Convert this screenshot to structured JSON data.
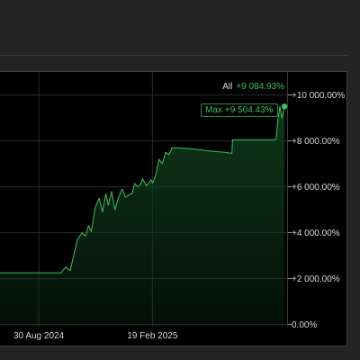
{
  "colors": {
    "line": "#3cc15a",
    "fill_top": "#0f3a1c",
    "axis_text": "#d8d8d8",
    "grid": "#2a2a2a",
    "accent": "#3cc15a"
  },
  "summary": {
    "label": "All",
    "value": "+9 084.93%"
  },
  "max_badge": {
    "label": "Max",
    "value": "+9 504.43%"
  },
  "chart_data": {
    "type": "area",
    "grid": true,
    "legend_position": "none",
    "y_ticks": [
      0,
      2000,
      4000,
      6000,
      8000,
      10000
    ],
    "y_tick_labels": [
      "0.00%",
      "+2 000.00%",
      "+4 000.00%",
      "+6 000.00%",
      "+8 000.00%",
      "+10 000.00%"
    ],
    "ylim": [
      -100,
      11000
    ],
    "x_ticks": [
      "2024-08-30",
      "2025-02-19"
    ],
    "x_tick_labels": [
      "30 Aug 2024",
      "19 Feb 2025"
    ],
    "xlim": [
      "2024-07-02",
      "2025-09-12"
    ],
    "series": [
      {
        "values": [
          [
            "2024-07-02",
            2250
          ],
          [
            "2024-08-01",
            2250
          ],
          [
            "2024-09-01",
            2250
          ],
          [
            "2024-10-03",
            2250
          ],
          [
            "2024-10-10",
            2500
          ],
          [
            "2024-10-17",
            2350
          ],
          [
            "2024-10-22",
            3000
          ],
          [
            "2024-10-28",
            3700
          ],
          [
            "2024-11-04",
            4000
          ],
          [
            "2024-11-09",
            3850
          ],
          [
            "2024-11-14",
            4300
          ],
          [
            "2024-11-18",
            4050
          ],
          [
            "2024-11-24",
            5100
          ],
          [
            "2024-11-30",
            5500
          ],
          [
            "2024-12-05",
            4900
          ],
          [
            "2024-12-10",
            5700
          ],
          [
            "2024-12-14",
            5200
          ],
          [
            "2024-12-19",
            5800
          ],
          [
            "2024-12-24",
            5000
          ],
          [
            "2024-12-29",
            5500
          ],
          [
            "2025-01-04",
            5900
          ],
          [
            "2025-01-09",
            5550
          ],
          [
            "2025-01-14",
            5650
          ],
          [
            "2025-01-19",
            5700
          ],
          [
            "2025-01-23",
            6150
          ],
          [
            "2025-01-27",
            6000
          ],
          [
            "2025-02-01",
            6100
          ],
          [
            "2025-02-04",
            6350
          ],
          [
            "2025-02-10",
            6050
          ],
          [
            "2025-02-17",
            6300
          ],
          [
            "2025-02-19",
            6150
          ],
          [
            "2025-02-24",
            6500
          ],
          [
            "2025-03-01",
            7200
          ],
          [
            "2025-03-06",
            7000
          ],
          [
            "2025-03-11",
            7500
          ],
          [
            "2025-03-16",
            7400
          ],
          [
            "2025-03-21",
            7700
          ],
          [
            "2025-03-26",
            7700
          ],
          [
            "2025-04-20",
            7650
          ],
          [
            "2025-05-20",
            7550
          ],
          [
            "2025-06-10",
            7500
          ],
          [
            "2025-06-20",
            7450
          ],
          [
            "2025-06-21",
            8050
          ],
          [
            "2025-07-10",
            8050
          ],
          [
            "2025-08-01",
            8050
          ],
          [
            "2025-08-26",
            8050
          ],
          [
            "2025-08-29",
            8900
          ],
          [
            "2025-09-01",
            9500
          ],
          [
            "2025-09-04",
            9000
          ],
          [
            "2025-09-08",
            9500
          ]
        ]
      }
    ]
  }
}
